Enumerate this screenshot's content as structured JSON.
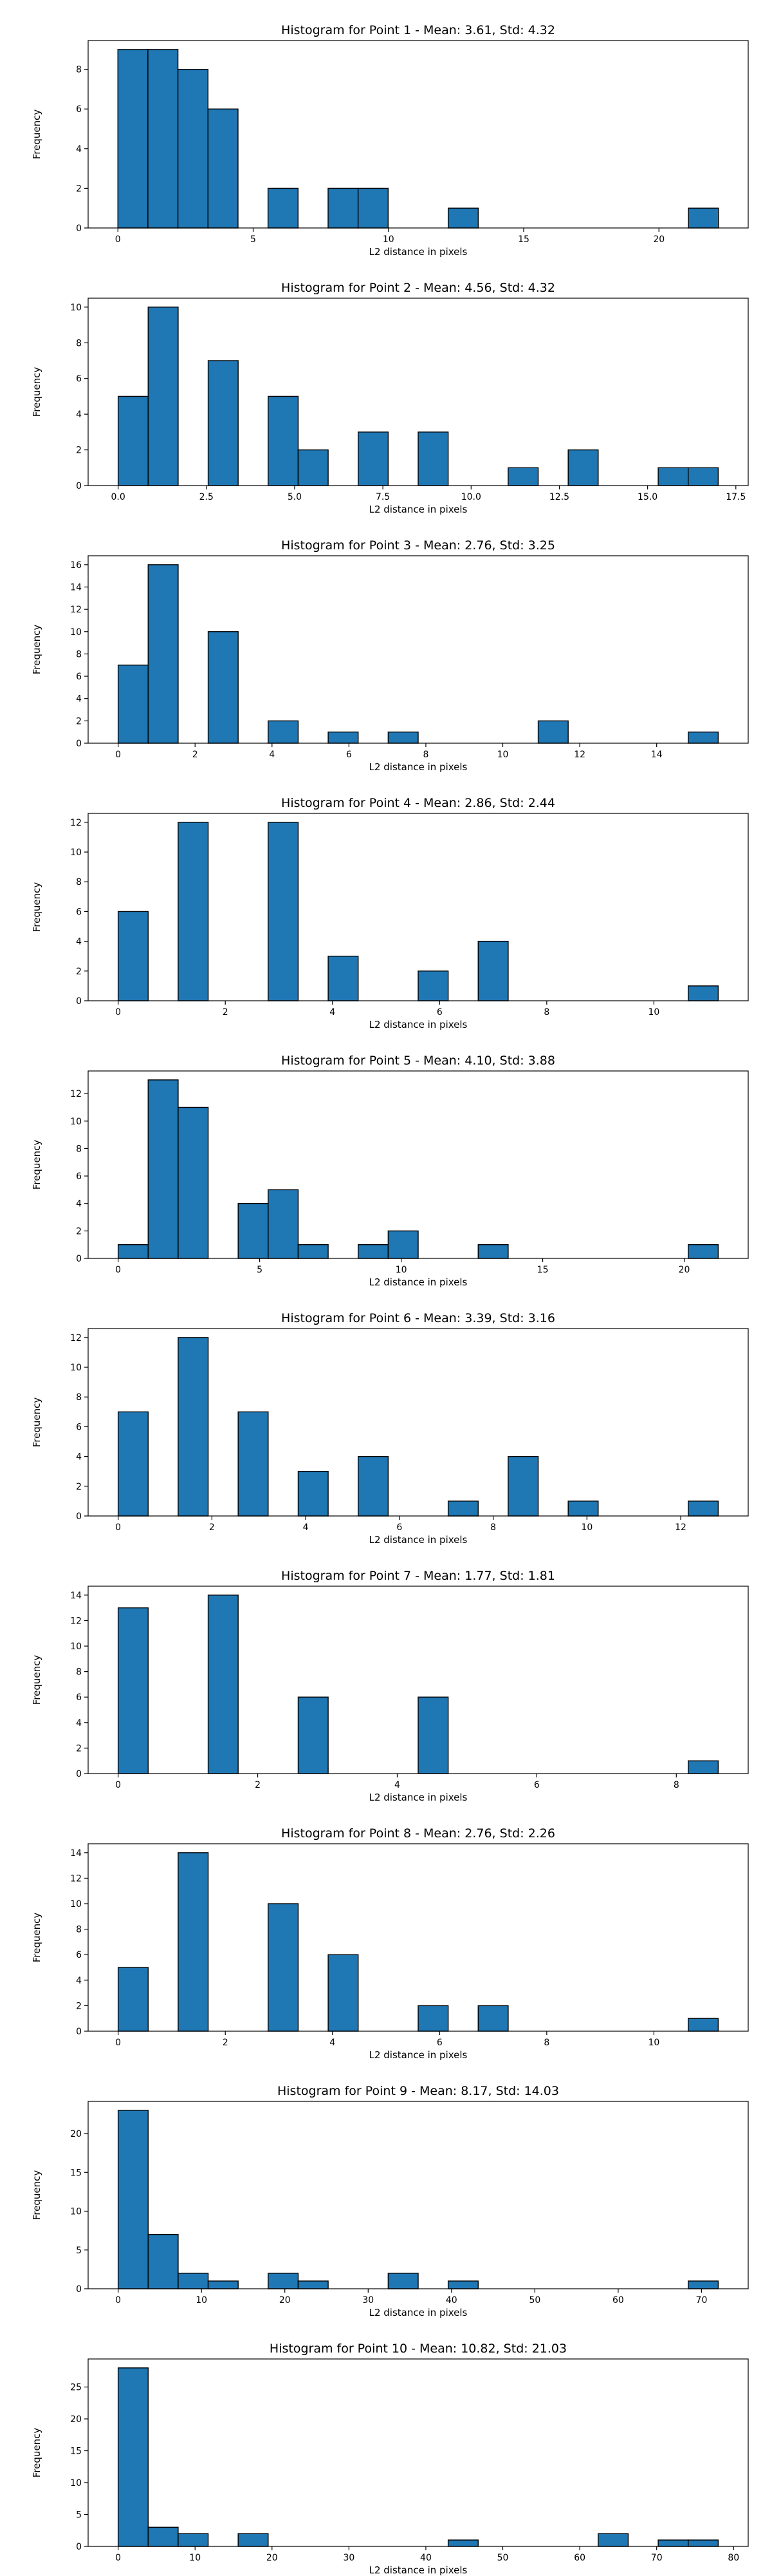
{
  "chart_data": [
    {
      "type": "bar",
      "title": "Histogram for Point 1 - Mean: 3.61, Std: 4.32",
      "xlabel": "L2 distance in pixels",
      "ylabel": "Frequency",
      "xlim": [
        -1.1,
        23.3
      ],
      "ylim": [
        0,
        9.45
      ],
      "xticks": [
        0,
        5,
        10,
        15,
        20
      ],
      "xtick_labels": [
        "0",
        "5",
        "10",
        "15",
        "20"
      ],
      "yticks": [
        0,
        2,
        4,
        6,
        8
      ],
      "ytick_labels": [
        "0",
        "2",
        "4",
        "6",
        "8"
      ],
      "bins": [
        [
          0.0,
          1.11,
          9
        ],
        [
          1.11,
          2.22,
          9
        ],
        [
          2.22,
          3.33,
          8
        ],
        [
          3.33,
          4.44,
          6
        ],
        [
          5.55,
          6.66,
          2
        ],
        [
          7.77,
          8.88,
          2
        ],
        [
          8.88,
          9.99,
          2
        ],
        [
          12.21,
          13.32,
          1
        ],
        [
          21.09,
          22.2,
          1
        ]
      ]
    },
    {
      "type": "bar",
      "title": "Histogram for Point 2 - Mean: 4.56, Std: 4.32",
      "xlabel": "L2 distance in pixels",
      "ylabel": "Frequency",
      "xlim": [
        -0.85,
        17.85
      ],
      "ylim": [
        0,
        10.5
      ],
      "xticks": [
        0,
        2.5,
        5,
        7.5,
        10,
        12.5,
        15,
        17.5
      ],
      "xtick_labels": [
        "0.0",
        "2.5",
        "5.0",
        "7.5",
        "10.0",
        "12.5",
        "15.0",
        "17.5"
      ],
      "yticks": [
        0,
        2,
        4,
        6,
        8,
        10
      ],
      "ytick_labels": [
        "0",
        "2",
        "4",
        "6",
        "8",
        "10"
      ],
      "bins": [
        [
          0.0,
          0.85,
          5
        ],
        [
          0.85,
          1.7,
          10
        ],
        [
          2.55,
          3.4,
          7
        ],
        [
          4.25,
          5.1,
          5
        ],
        [
          5.1,
          5.95,
          2
        ],
        [
          6.8,
          7.65,
          3
        ],
        [
          8.5,
          9.35,
          3
        ],
        [
          11.05,
          11.9,
          1
        ],
        [
          12.75,
          13.6,
          2
        ],
        [
          15.3,
          16.15,
          1
        ],
        [
          16.15,
          17.0,
          1
        ]
      ]
    },
    {
      "type": "bar",
      "title": "Histogram for Point 3 - Mean: 2.76, Std: 3.25",
      "xlabel": "L2 distance in pixels",
      "ylabel": "Frequency",
      "xlim": [
        -0.78,
        16.38
      ],
      "ylim": [
        0,
        16.8
      ],
      "xticks": [
        0,
        2,
        4,
        6,
        8,
        10,
        12,
        14
      ],
      "xtick_labels": [
        "0",
        "2",
        "4",
        "6",
        "8",
        "10",
        "12",
        "14"
      ],
      "yticks": [
        0,
        2,
        4,
        6,
        8,
        10,
        12,
        14,
        16
      ],
      "ytick_labels": [
        "0",
        "2",
        "4",
        "6",
        "8",
        "10",
        "12",
        "14",
        "16"
      ],
      "bins": [
        [
          0.0,
          0.78,
          7
        ],
        [
          0.78,
          1.56,
          16
        ],
        [
          2.34,
          3.12,
          10
        ],
        [
          3.9,
          4.68,
          2
        ],
        [
          5.46,
          6.24,
          1
        ],
        [
          7.02,
          7.8,
          1
        ],
        [
          10.92,
          11.7,
          2
        ],
        [
          14.82,
          15.6,
          1
        ]
      ]
    },
    {
      "type": "bar",
      "title": "Histogram for Point 4 - Mean: 2.86, Std: 2.44",
      "xlabel": "L2 distance in pixels",
      "ylabel": "Frequency",
      "xlim": [
        -0.56,
        11.76
      ],
      "ylim": [
        0,
        12.6
      ],
      "xticks": [
        0,
        2,
        4,
        6,
        8,
        10
      ],
      "xtick_labels": [
        "0",
        "2",
        "4",
        "6",
        "8",
        "10"
      ],
      "yticks": [
        0,
        2,
        4,
        6,
        8,
        10,
        12
      ],
      "ytick_labels": [
        "0",
        "2",
        "4",
        "6",
        "8",
        "10",
        "12"
      ],
      "bins": [
        [
          0.0,
          0.56,
          6
        ],
        [
          1.12,
          1.68,
          12
        ],
        [
          2.8,
          3.36,
          12
        ],
        [
          3.92,
          4.48,
          3
        ],
        [
          5.6,
          6.16,
          2
        ],
        [
          6.72,
          7.28,
          4
        ],
        [
          10.64,
          11.2,
          1
        ]
      ]
    },
    {
      "type": "bar",
      "title": "Histogram for Point 5 - Mean: 4.10, Std: 3.88",
      "xlabel": "L2 distance in pixels",
      "ylabel": "Frequency",
      "xlim": [
        -1.06,
        22.26
      ],
      "ylim": [
        0,
        13.65
      ],
      "xticks": [
        0,
        5,
        10,
        15,
        20
      ],
      "xtick_labels": [
        "0",
        "5",
        "10",
        "15",
        "20"
      ],
      "yticks": [
        0,
        2,
        4,
        6,
        8,
        10,
        12
      ],
      "ytick_labels": [
        "0",
        "2",
        "4",
        "6",
        "8",
        "10",
        "12"
      ],
      "bins": [
        [
          0.0,
          1.06,
          1
        ],
        [
          1.06,
          2.12,
          13
        ],
        [
          2.12,
          3.18,
          11
        ],
        [
          4.24,
          5.3,
          4
        ],
        [
          5.3,
          6.36,
          5
        ],
        [
          6.36,
          7.42,
          1
        ],
        [
          8.48,
          9.54,
          1
        ],
        [
          9.54,
          10.6,
          2
        ],
        [
          12.72,
          13.78,
          1
        ],
        [
          20.14,
          21.2,
          1
        ]
      ]
    },
    {
      "type": "bar",
      "title": "Histogram for Point 6 - Mean: 3.39, Std: 3.16",
      "xlabel": "L2 distance in pixels",
      "ylabel": "Frequency",
      "xlim": [
        -0.64,
        13.44
      ],
      "ylim": [
        0,
        12.6
      ],
      "xticks": [
        0,
        2,
        4,
        6,
        8,
        10,
        12
      ],
      "xtick_labels": [
        "0",
        "2",
        "4",
        "6",
        "8",
        "10",
        "12"
      ],
      "yticks": [
        0,
        2,
        4,
        6,
        8,
        10,
        12
      ],
      "ytick_labels": [
        "0",
        "2",
        "4",
        "6",
        "8",
        "10",
        "12"
      ],
      "bins": [
        [
          0.0,
          0.64,
          7
        ],
        [
          1.28,
          1.92,
          12
        ],
        [
          2.56,
          3.2,
          7
        ],
        [
          3.84,
          4.48,
          3
        ],
        [
          5.12,
          5.76,
          4
        ],
        [
          7.04,
          7.68,
          1
        ],
        [
          8.32,
          8.96,
          4
        ],
        [
          9.6,
          10.24,
          1
        ],
        [
          12.16,
          12.8,
          1
        ]
      ]
    },
    {
      "type": "bar",
      "title": "Histogram for Point 7 - Mean: 1.77, Std: 1.81",
      "xlabel": "L2 distance in pixels",
      "ylabel": "Frequency",
      "xlim": [
        -0.43,
        9.03
      ],
      "ylim": [
        0,
        14.7
      ],
      "xticks": [
        0,
        2,
        4,
        6,
        8
      ],
      "xtick_labels": [
        "0",
        "2",
        "4",
        "6",
        "8"
      ],
      "yticks": [
        0,
        2,
        4,
        6,
        8,
        10,
        12,
        14
      ],
      "ytick_labels": [
        "0",
        "2",
        "4",
        "6",
        "8",
        "10",
        "12",
        "14"
      ],
      "bins": [
        [
          0.0,
          0.43,
          13
        ],
        [
          1.29,
          1.72,
          14
        ],
        [
          2.58,
          3.01,
          6
        ],
        [
          4.3,
          4.73,
          6
        ],
        [
          8.17,
          8.6,
          1
        ]
      ]
    },
    {
      "type": "bar",
      "title": "Histogram for Point 8 - Mean: 2.76, Std: 2.26",
      "xlabel": "L2 distance in pixels",
      "ylabel": "Frequency",
      "xlim": [
        -0.56,
        11.76
      ],
      "ylim": [
        0,
        14.7
      ],
      "xticks": [
        0,
        2,
        4,
        6,
        8,
        10
      ],
      "xtick_labels": [
        "0",
        "2",
        "4",
        "6",
        "8",
        "10"
      ],
      "yticks": [
        0,
        2,
        4,
        6,
        8,
        10,
        12,
        14
      ],
      "ytick_labels": [
        "0",
        "2",
        "4",
        "6",
        "8",
        "10",
        "12",
        "14"
      ],
      "bins": [
        [
          0.0,
          0.56,
          5
        ],
        [
          1.12,
          1.68,
          14
        ],
        [
          2.8,
          3.36,
          10
        ],
        [
          3.92,
          4.48,
          6
        ],
        [
          5.6,
          6.16,
          2
        ],
        [
          6.72,
          7.28,
          2
        ],
        [
          10.64,
          11.2,
          1
        ]
      ]
    },
    {
      "type": "bar",
      "title": "Histogram for Point 9 - Mean: 8.17, Std: 14.03",
      "xlabel": "L2 distance in pixels",
      "ylabel": "Frequency",
      "xlim": [
        -3.6,
        75.6
      ],
      "ylim": [
        0,
        24.15
      ],
      "xticks": [
        0,
        10,
        20,
        30,
        40,
        50,
        60,
        70
      ],
      "xtick_labels": [
        "0",
        "10",
        "20",
        "30",
        "40",
        "50",
        "60",
        "70"
      ],
      "yticks": [
        0,
        5,
        10,
        15,
        20
      ],
      "ytick_labels": [
        "0",
        "5",
        "10",
        "15",
        "20"
      ],
      "bins": [
        [
          0.0,
          3.6,
          23
        ],
        [
          3.6,
          7.2,
          7
        ],
        [
          7.2,
          10.8,
          2
        ],
        [
          10.8,
          14.4,
          1
        ],
        [
          18.0,
          21.6,
          2
        ],
        [
          21.6,
          25.2,
          1
        ],
        [
          32.4,
          36.0,
          2
        ],
        [
          39.6,
          43.2,
          1
        ],
        [
          68.4,
          72.0,
          1
        ]
      ]
    },
    {
      "type": "bar",
      "title": "Histogram for Point 10 - Mean: 10.82, Std: 21.03",
      "xlabel": "L2 distance in pixels",
      "ylabel": "Frequency",
      "xlim": [
        -3.9,
        81.9
      ],
      "ylim": [
        0,
        29.4
      ],
      "xticks": [
        0,
        10,
        20,
        30,
        40,
        50,
        60,
        70,
        80
      ],
      "xtick_labels": [
        "0",
        "10",
        "20",
        "30",
        "40",
        "50",
        "60",
        "70",
        "80"
      ],
      "yticks": [
        0,
        5,
        10,
        15,
        20,
        25
      ],
      "ytick_labels": [
        "0",
        "5",
        "10",
        "15",
        "20",
        "25"
      ],
      "bins": [
        [
          0.0,
          3.9,
          28
        ],
        [
          3.9,
          7.8,
          3
        ],
        [
          7.8,
          11.7,
          2
        ],
        [
          15.6,
          19.5,
          2
        ],
        [
          42.9,
          46.8,
          1
        ],
        [
          62.4,
          66.3,
          2
        ],
        [
          70.2,
          74.1,
          1
        ],
        [
          74.1,
          78.0,
          1
        ]
      ]
    }
  ]
}
